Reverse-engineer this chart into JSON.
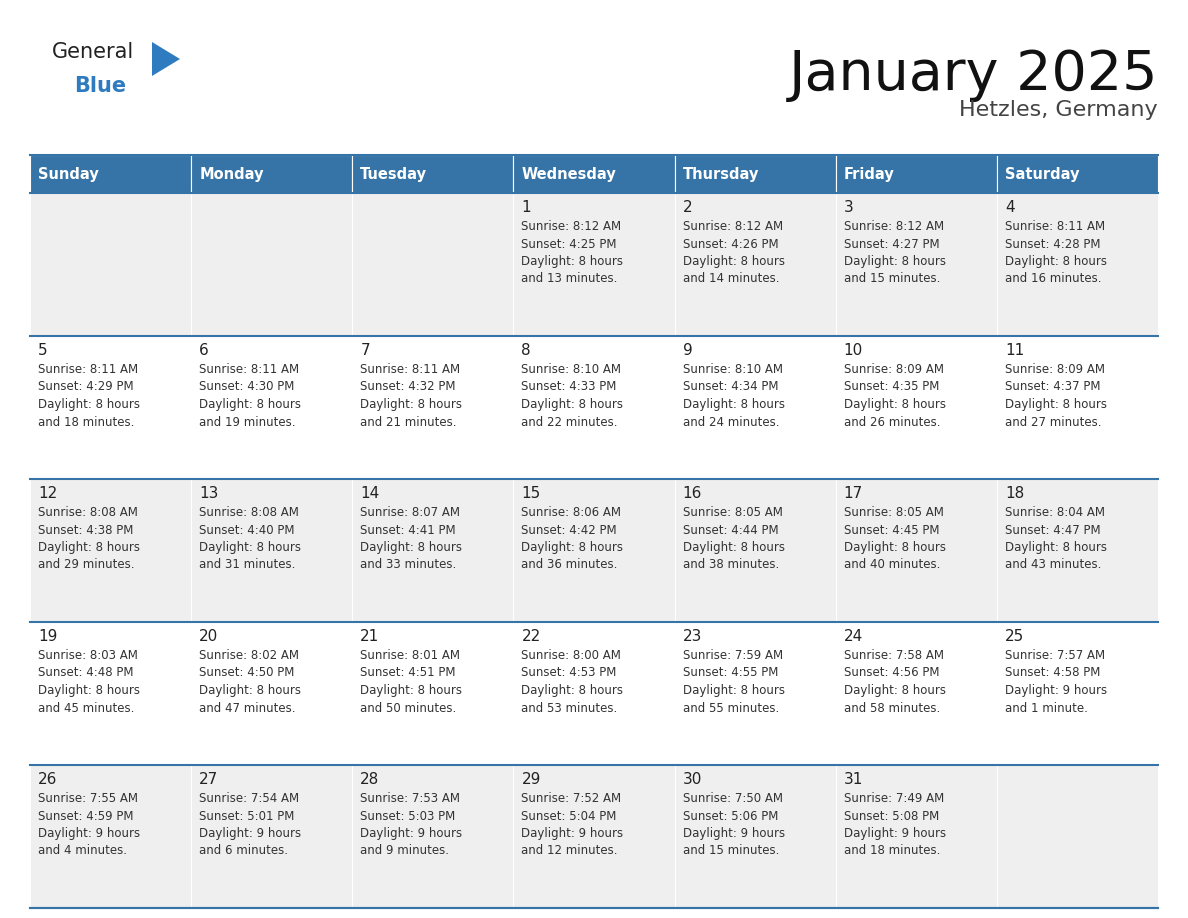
{
  "title": "January 2025",
  "subtitle": "Hetzles, Germany",
  "days_of_week": [
    "Sunday",
    "Monday",
    "Tuesday",
    "Wednesday",
    "Thursday",
    "Friday",
    "Saturday"
  ],
  "header_bg": "#3674a8",
  "header_text": "#ffffff",
  "row_bg_odd": "#efefef",
  "row_bg_even": "#ffffff",
  "border_color": "#3674a8",
  "day_num_color": "#222222",
  "cell_text_color": "#333333",
  "title_color": "#111111",
  "subtitle_color": "#444444",
  "logo_black": "#222222",
  "logo_blue": "#2e7cbf",
  "weeks": [
    [
      {
        "day": "",
        "info": ""
      },
      {
        "day": "",
        "info": ""
      },
      {
        "day": "",
        "info": ""
      },
      {
        "day": "1",
        "info": "Sunrise: 8:12 AM\nSunset: 4:25 PM\nDaylight: 8 hours\nand 13 minutes."
      },
      {
        "day": "2",
        "info": "Sunrise: 8:12 AM\nSunset: 4:26 PM\nDaylight: 8 hours\nand 14 minutes."
      },
      {
        "day": "3",
        "info": "Sunrise: 8:12 AM\nSunset: 4:27 PM\nDaylight: 8 hours\nand 15 minutes."
      },
      {
        "day": "4",
        "info": "Sunrise: 8:11 AM\nSunset: 4:28 PM\nDaylight: 8 hours\nand 16 minutes."
      }
    ],
    [
      {
        "day": "5",
        "info": "Sunrise: 8:11 AM\nSunset: 4:29 PM\nDaylight: 8 hours\nand 18 minutes."
      },
      {
        "day": "6",
        "info": "Sunrise: 8:11 AM\nSunset: 4:30 PM\nDaylight: 8 hours\nand 19 minutes."
      },
      {
        "day": "7",
        "info": "Sunrise: 8:11 AM\nSunset: 4:32 PM\nDaylight: 8 hours\nand 21 minutes."
      },
      {
        "day": "8",
        "info": "Sunrise: 8:10 AM\nSunset: 4:33 PM\nDaylight: 8 hours\nand 22 minutes."
      },
      {
        "day": "9",
        "info": "Sunrise: 8:10 AM\nSunset: 4:34 PM\nDaylight: 8 hours\nand 24 minutes."
      },
      {
        "day": "10",
        "info": "Sunrise: 8:09 AM\nSunset: 4:35 PM\nDaylight: 8 hours\nand 26 minutes."
      },
      {
        "day": "11",
        "info": "Sunrise: 8:09 AM\nSunset: 4:37 PM\nDaylight: 8 hours\nand 27 minutes."
      }
    ],
    [
      {
        "day": "12",
        "info": "Sunrise: 8:08 AM\nSunset: 4:38 PM\nDaylight: 8 hours\nand 29 minutes."
      },
      {
        "day": "13",
        "info": "Sunrise: 8:08 AM\nSunset: 4:40 PM\nDaylight: 8 hours\nand 31 minutes."
      },
      {
        "day": "14",
        "info": "Sunrise: 8:07 AM\nSunset: 4:41 PM\nDaylight: 8 hours\nand 33 minutes."
      },
      {
        "day": "15",
        "info": "Sunrise: 8:06 AM\nSunset: 4:42 PM\nDaylight: 8 hours\nand 36 minutes."
      },
      {
        "day": "16",
        "info": "Sunrise: 8:05 AM\nSunset: 4:44 PM\nDaylight: 8 hours\nand 38 minutes."
      },
      {
        "day": "17",
        "info": "Sunrise: 8:05 AM\nSunset: 4:45 PM\nDaylight: 8 hours\nand 40 minutes."
      },
      {
        "day": "18",
        "info": "Sunrise: 8:04 AM\nSunset: 4:47 PM\nDaylight: 8 hours\nand 43 minutes."
      }
    ],
    [
      {
        "day": "19",
        "info": "Sunrise: 8:03 AM\nSunset: 4:48 PM\nDaylight: 8 hours\nand 45 minutes."
      },
      {
        "day": "20",
        "info": "Sunrise: 8:02 AM\nSunset: 4:50 PM\nDaylight: 8 hours\nand 47 minutes."
      },
      {
        "day": "21",
        "info": "Sunrise: 8:01 AM\nSunset: 4:51 PM\nDaylight: 8 hours\nand 50 minutes."
      },
      {
        "day": "22",
        "info": "Sunrise: 8:00 AM\nSunset: 4:53 PM\nDaylight: 8 hours\nand 53 minutes."
      },
      {
        "day": "23",
        "info": "Sunrise: 7:59 AM\nSunset: 4:55 PM\nDaylight: 8 hours\nand 55 minutes."
      },
      {
        "day": "24",
        "info": "Sunrise: 7:58 AM\nSunset: 4:56 PM\nDaylight: 8 hours\nand 58 minutes."
      },
      {
        "day": "25",
        "info": "Sunrise: 7:57 AM\nSunset: 4:58 PM\nDaylight: 9 hours\nand 1 minute."
      }
    ],
    [
      {
        "day": "26",
        "info": "Sunrise: 7:55 AM\nSunset: 4:59 PM\nDaylight: 9 hours\nand 4 minutes."
      },
      {
        "day": "27",
        "info": "Sunrise: 7:54 AM\nSunset: 5:01 PM\nDaylight: 9 hours\nand 6 minutes."
      },
      {
        "day": "28",
        "info": "Sunrise: 7:53 AM\nSunset: 5:03 PM\nDaylight: 9 hours\nand 9 minutes."
      },
      {
        "day": "29",
        "info": "Sunrise: 7:52 AM\nSunset: 5:04 PM\nDaylight: 9 hours\nand 12 minutes."
      },
      {
        "day": "30",
        "info": "Sunrise: 7:50 AM\nSunset: 5:06 PM\nDaylight: 9 hours\nand 15 minutes."
      },
      {
        "day": "31",
        "info": "Sunrise: 7:49 AM\nSunset: 5:08 PM\nDaylight: 9 hours\nand 18 minutes."
      },
      {
        "day": "",
        "info": ""
      }
    ]
  ]
}
